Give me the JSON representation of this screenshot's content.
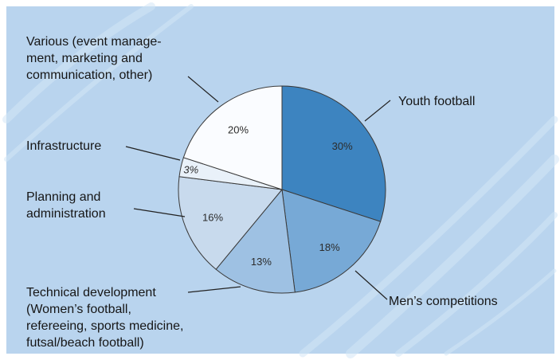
{
  "chart_data": {
    "type": "pie",
    "title": "",
    "slices": [
      {
        "name": "Youth football",
        "value": 30,
        "label": "30%",
        "color": "#3d84c0",
        "label_lines": [
          "Youth football"
        ]
      },
      {
        "name": "Men’s competitions",
        "value": 18,
        "label": "18%",
        "color": "#77a9d6",
        "label_lines": [
          "Men’s competitions"
        ]
      },
      {
        "name": "Technical development (Women’s football, refereeing, sports medicine, futsal/beach football)",
        "value": 13,
        "label": "13%",
        "color": "#9ec1e3",
        "label_lines": [
          "Technical development",
          "(Women’s football,",
          "refereeing, sports medicine,",
          "futsal/beach football)"
        ]
      },
      {
        "name": "Planning and administration",
        "value": 16,
        "label": "16%",
        "color": "#c8daed",
        "label_lines": [
          "Planning and",
          "administration"
        ]
      },
      {
        "name": "Infrastructure",
        "value": 3,
        "label": "3%",
        "color": "#e9f1f9",
        "label_lines": [
          "Infrastructure"
        ]
      },
      {
        "name": "Various (event management, marketing and communication, other)",
        "value": 20,
        "label": "20%",
        "color": "#fafcff",
        "label_lines": [
          "Various (event manage-",
          "ment, marketing and",
          "communication, other)"
        ]
      }
    ],
    "colors": {
      "background": "#b9d4ee",
      "streaks": "#d3e5f6",
      "outline": "#3a3a3a"
    }
  }
}
